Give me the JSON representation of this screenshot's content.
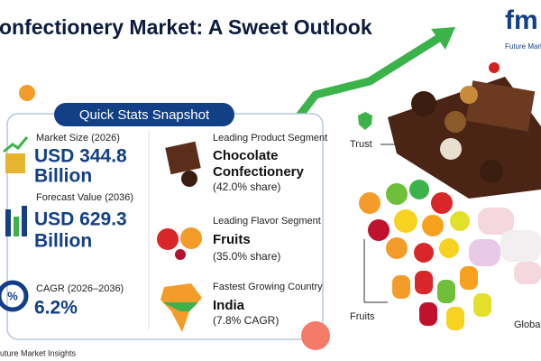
{
  "header": {
    "title": "onfectionery Market: A Sweet Outlook",
    "logo": "fm",
    "logo_caption": "Future Mark"
  },
  "snapshot": {
    "heading": "Quick Stats Snapshot",
    "left": [
      {
        "label": "Market Size (2026)",
        "value_line1": "USD 344.8",
        "value_line2": "Billion"
      },
      {
        "label": "Forecast Value (2036)",
        "value_line1": "USD 629.3",
        "value_line2": "Billion"
      },
      {
        "label": "CAGR (2026–2036)",
        "value_line1": "6.2%"
      }
    ],
    "right": [
      {
        "label": "Leading Product Segment",
        "value_line1": "Chocolate",
        "value_line2": "Confectionery",
        "note": "(42.0% share)"
      },
      {
        "label": "Leading Flavor Segment",
        "value_line1": "Fruits",
        "note": "(35.0% share)"
      },
      {
        "label": "Fastest Growing Country",
        "value_line1": "India",
        "note": "(7.8% CAGR)"
      }
    ]
  },
  "callouts": {
    "trust": "Trust",
    "fruits": "Fruits",
    "global": "Globa"
  },
  "footer": {
    "source": "uture Market Insights"
  }
}
